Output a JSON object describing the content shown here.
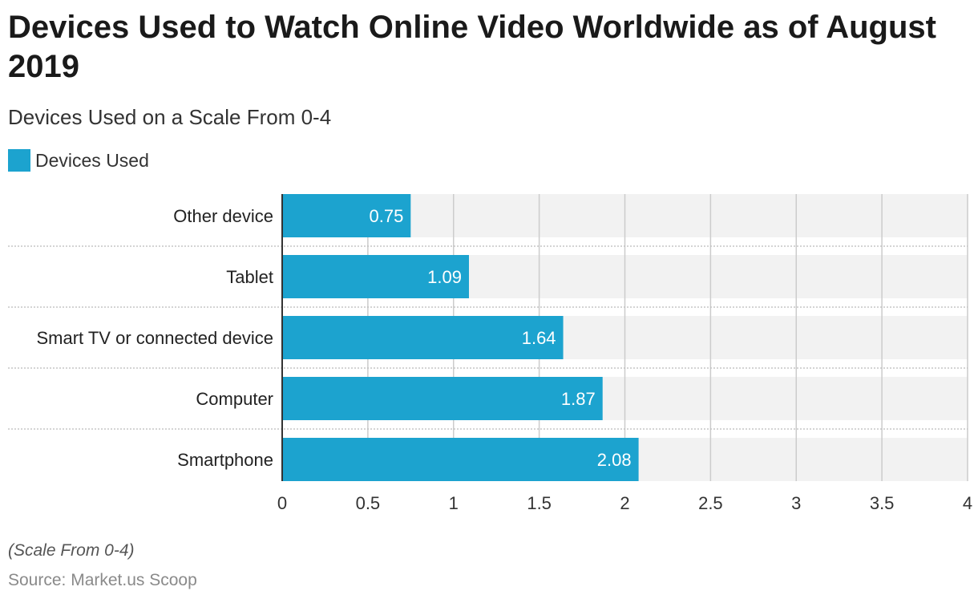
{
  "title": "Devices Used to Watch Online Video Worldwide as of August 2019",
  "subtitle": "Devices Used on a Scale From 0-4",
  "footnote": "(Scale From 0-4)",
  "source": "Source: Market.us Scoop",
  "colors": {
    "bar": "#1ca3cf",
    "track": "#f2f2f2",
    "grid": "#cccccc",
    "separator": "#bbbbbb",
    "axis": "#333333"
  },
  "chart_data": {
    "type": "bar",
    "orientation": "horizontal",
    "categories": [
      "Other device",
      "Tablet",
      "Smart TV or connected device",
      "Computer",
      "Smartphone"
    ],
    "series": [
      {
        "name": "Devices Used",
        "values": [
          0.75,
          1.09,
          1.64,
          1.87,
          2.08
        ],
        "value_labels": [
          "0.75",
          "1.09",
          "1.64",
          "1.87",
          "2.08"
        ]
      }
    ],
    "xlim": [
      0,
      4
    ],
    "xticks": [
      0,
      0.5,
      1,
      1.5,
      2,
      2.5,
      3,
      3.5,
      4
    ],
    "xtick_labels": [
      "0",
      "0.5",
      "1",
      "1.5",
      "2",
      "2.5",
      "3",
      "3.5",
      "4"
    ],
    "grid": true,
    "legend_position": "top-left"
  }
}
